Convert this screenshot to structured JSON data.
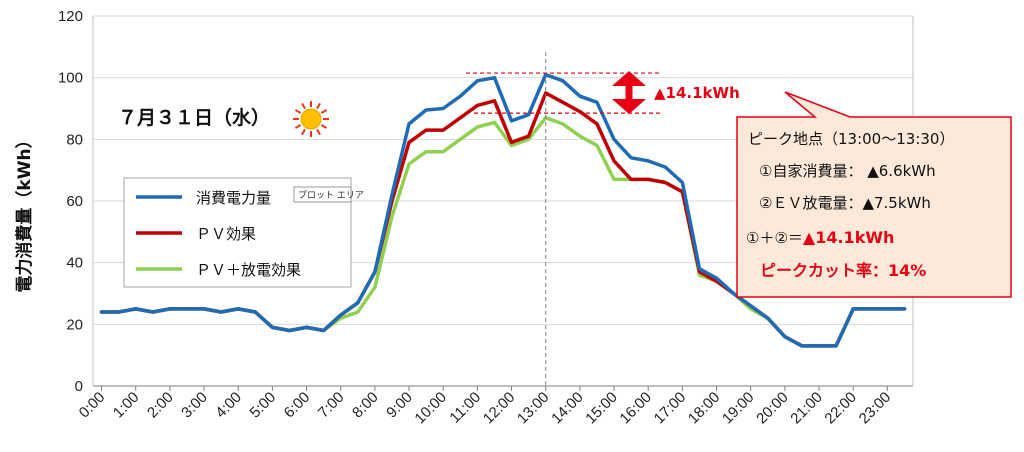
{
  "chart_data": {
    "type": "line",
    "ylabel": "電力消費量（kWh）",
    "ylim": [
      0,
      120
    ],
    "yticks": [
      "0",
      "20",
      "40",
      "60",
      "80",
      "100",
      "120"
    ],
    "xticks": [
      "0:00",
      "1:00",
      "2:00",
      "3:00",
      "4:00",
      "5:00",
      "6:00",
      "7:00",
      "8:00",
      "9:00",
      "10:00",
      "11:00",
      "12:00",
      "13:00",
      "14:00",
      "15:00",
      "16:00",
      "17:00",
      "18:00",
      "19:00",
      "20:00",
      "21:00",
      "22:00",
      "23:00"
    ],
    "x": [
      "0:00",
      "0:30",
      "1:00",
      "1:30",
      "2:00",
      "2:30",
      "3:00",
      "3:30",
      "4:00",
      "4:30",
      "5:00",
      "5:30",
      "6:00",
      "6:30",
      "7:00",
      "7:30",
      "8:00",
      "8:30",
      "9:00",
      "9:30",
      "10:00",
      "10:30",
      "11:00",
      "11:30",
      "12:00",
      "12:30",
      "13:00",
      "13:30",
      "14:00",
      "14:30",
      "15:00",
      "15:30",
      "16:00",
      "16:30",
      "17:00",
      "17:30",
      "18:00",
      "18:30",
      "19:00",
      "19:30",
      "20:00",
      "20:30",
      "21:00",
      "21:30",
      "22:00",
      "22:30",
      "23:00",
      "23:30"
    ],
    "grid": true,
    "legend_position": "left-middle",
    "series": [
      {
        "name": "消費電力量",
        "color": "#1f6cb6",
        "values": [
          24,
          24,
          25,
          24,
          25,
          25,
          25,
          24,
          25,
          24,
          19,
          18,
          19,
          18,
          23,
          27,
          37,
          62,
          85,
          89.5,
          90,
          94,
          99,
          100,
          86,
          88,
          101,
          99,
          94,
          92,
          80,
          74,
          73,
          71,
          66,
          38,
          35,
          30,
          26,
          22,
          16,
          13,
          13,
          13,
          25,
          25,
          25,
          25
        ]
      },
      {
        "name": "ＰＶ効果",
        "color": "#c00000",
        "values": [
          24,
          24,
          25,
          24,
          25,
          25,
          25,
          24,
          25,
          24,
          19,
          18,
          19,
          18,
          23,
          27,
          37,
          60,
          79,
          83,
          83,
          87,
          91,
          92.5,
          79,
          81,
          95,
          92,
          89,
          85,
          73,
          67,
          67,
          66,
          63,
          37,
          34,
          30,
          26,
          22,
          16,
          13,
          13,
          13,
          25,
          25,
          25,
          25
        ]
      },
      {
        "name": "ＰＶ＋放電効果",
        "color": "#8fd14f",
        "values": [
          24,
          24,
          25,
          24,
          25,
          25,
          25,
          24,
          25,
          24,
          19,
          18,
          19,
          18,
          22,
          24,
          32,
          55,
          72,
          76,
          76,
          80,
          84,
          85.5,
          78,
          80,
          87,
          85,
          81,
          78,
          67,
          67,
          67,
          66,
          63,
          36,
          34,
          30,
          25,
          22,
          16,
          13,
          13,
          13,
          25,
          25,
          25,
          25
        ]
      }
    ],
    "annotations": {
      "date_label": "７月３１日（水）",
      "weather_icon": "sun-icon",
      "legend_tag": "プロット エリア",
      "arrow_label": "▲14.1kWh",
      "dashed_marker_x": "13:00",
      "peak_top": 101.5,
      "peak_bottom": 88.5,
      "callout": {
        "line1": "ピーク地点（13:00～13:30）",
        "line2": "①自家消費量： ▲6.6kWh",
        "line3": "②ＥＶ放電量：▲7.5kWh",
        "line4_prefix": "①＋②＝",
        "line4_value": "▲14.1kWh",
        "line5": "ピークカット率：14%"
      }
    },
    "colors": {
      "accent_red": "#e60012",
      "callout_bg": "#fde9d9",
      "grid": "#d9d9d9"
    }
  }
}
